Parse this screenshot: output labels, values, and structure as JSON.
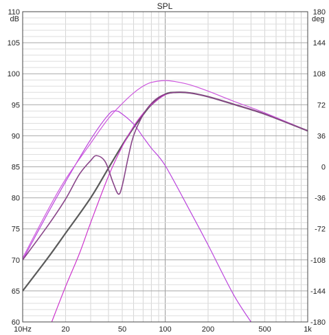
{
  "chart_data": {
    "type": "line",
    "title": "SPL",
    "ylabel": "dB",
    "y2label": "deg",
    "x_scale": "log",
    "xlim": [
      10,
      1000
    ],
    "ylim": [
      60,
      110
    ],
    "y2lim": [
      -180,
      180
    ],
    "grid": true,
    "x_ticks": [
      {
        "value": 10,
        "label": "10Hz"
      },
      {
        "value": 20,
        "label": "20"
      },
      {
        "value": 50,
        "label": "50"
      },
      {
        "value": 100,
        "label": "100"
      },
      {
        "value": 200,
        "label": "200"
      },
      {
        "value": 500,
        "label": "500"
      },
      {
        "value": 1000,
        "label": "1k"
      }
    ],
    "y_ticks": [
      60,
      65,
      70,
      75,
      80,
      85,
      90,
      95,
      100,
      105,
      110
    ],
    "y2_ticks": [
      -180,
      -144,
      -108,
      -72,
      -36,
      0,
      36,
      72,
      108,
      144,
      180
    ],
    "series": [
      {
        "color": "#5a5a5a",
        "width": 2.2,
        "x": [
          10,
          15,
          20,
          30,
          40,
          50,
          60,
          70,
          80,
          100,
          120,
          150,
          200,
          300,
          500,
          1000
        ],
        "y": [
          65,
          70.3,
          74.3,
          80,
          84.8,
          88.5,
          91.3,
          93.4,
          95,
          96.7,
          97,
          96.9,
          96.3,
          95.1,
          93.5,
          90.8
        ]
      },
      {
        "color": "#cc33cc",
        "width": 1.2,
        "x": [
          16,
          20,
          25,
          30,
          40,
          50,
          60,
          70,
          80,
          100,
          120,
          150,
          200,
          300,
          500,
          1000
        ],
        "y": [
          60,
          65.7,
          71,
          76,
          83.5,
          88.3,
          91.5,
          93.6,
          95,
          96.6,
          97,
          96.9,
          96.3,
          95.1,
          93.5,
          90.8
        ]
      },
      {
        "color": "#bb44dd",
        "width": 1.2,
        "x": [
          10,
          15,
          20,
          30,
          40,
          45,
          50,
          60,
          70,
          80,
          100,
          150,
          200,
          300,
          400
        ],
        "y": [
          70,
          77.5,
          82.6,
          89.4,
          93.4,
          94,
          93.5,
          91.9,
          89.8,
          88,
          85.2,
          77.8,
          72.4,
          64.5,
          60
        ]
      },
      {
        "color": "#cc55dd",
        "width": 1.2,
        "x": [
          10,
          15,
          20,
          30,
          40,
          50,
          60,
          70,
          80,
          100,
          120,
          150,
          200,
          300,
          500,
          1000
        ],
        "y": [
          70.3,
          78,
          83,
          88.8,
          92.8,
          95.2,
          96.9,
          98,
          98.6,
          98.9,
          98.7,
          98.2,
          97.2,
          95.6,
          93.7,
          90.8
        ]
      },
      {
        "color": "#884488",
        "width": 1.6,
        "x": [
          10,
          15,
          20,
          25,
          30,
          33,
          38,
          43,
          47,
          50,
          55,
          60,
          70,
          80,
          90,
          100,
          120,
          150,
          200,
          300,
          500,
          1000
        ],
        "y": [
          70,
          75.5,
          79.8,
          83.8,
          86,
          86.8,
          85.8,
          82.5,
          80.6,
          82,
          86.5,
          90,
          93.4,
          95.2,
          96.2,
          96.7,
          97,
          96.9,
          96.3,
          95.1,
          93.5,
          90.8
        ]
      }
    ]
  }
}
